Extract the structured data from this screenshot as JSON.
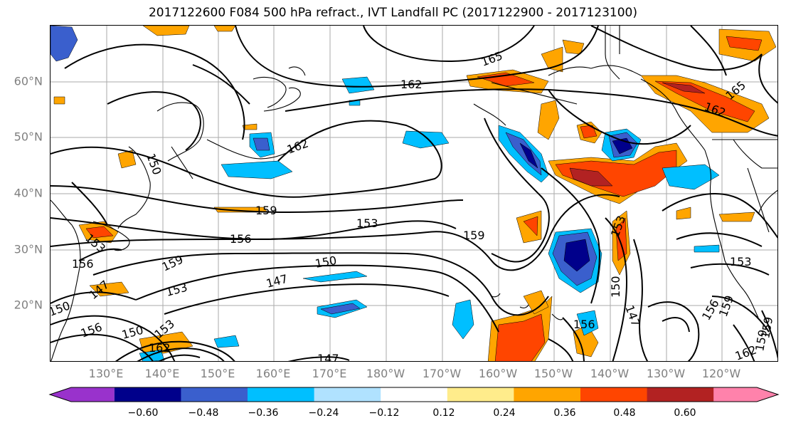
{
  "title": "2017122600 F084 500 hPa refract., IVT Landfall PC (2017122900 - 2017123100)",
  "lat_labels": [
    "60°N",
    "50°N",
    "40°N",
    "30°N",
    "20°N"
  ],
  "lon_labels": [
    "130°E",
    "140°E",
    "150°E",
    "160°E",
    "170°E",
    "180°W",
    "170°W",
    "160°W",
    "150°W",
    "140°W",
    "130°W",
    "120°W"
  ],
  "colorbar": {
    "ticks": [
      "−0.60",
      "−0.48",
      "−0.36",
      "−0.24",
      "−0.12",
      "0.12",
      "0.24",
      "0.36",
      "0.48",
      "0.60"
    ],
    "colors": [
      "#9932cc",
      "#00008b",
      "#3a5fcd",
      "#00bfff",
      "#b0e2ff",
      "#ffffff",
      "#ffec8b",
      "#ffa500",
      "#ff4500",
      "#b22222",
      "#ff82ab"
    ]
  },
  "contour_labels": [
    "165",
    "162",
    "165",
    "162",
    "162",
    "159",
    "159",
    "153",
    "156",
    "153",
    "159",
    "150",
    "147",
    "153",
    "156",
    "150",
    "153",
    "162",
    "147",
    "150",
    "147",
    "156",
    "153",
    "156",
    "159",
    "159",
    "162",
    "150",
    "147",
    "153",
    "150",
    "156",
    "159"
  ]
}
